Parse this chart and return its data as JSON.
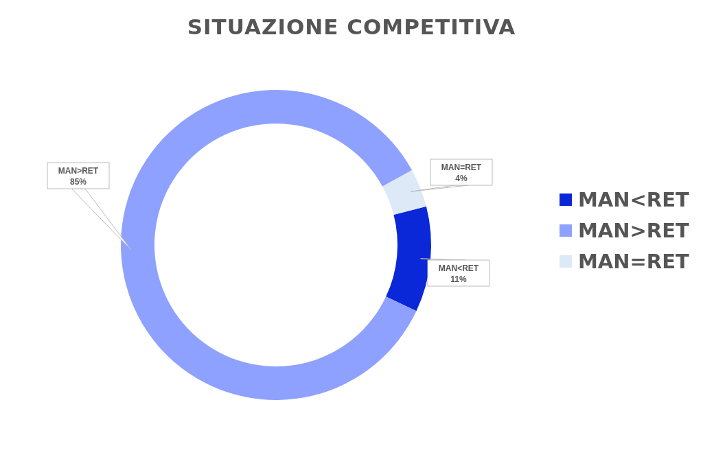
{
  "chart_data": {
    "type": "donut",
    "title": "SITUAZIONE COMPETITIVA",
    "categories": [
      "MAN<RET",
      "MAN>RET",
      "MAN=RET"
    ],
    "values": [
      11,
      85,
      4
    ],
    "value_labels": [
      "11%",
      "85%",
      "4%"
    ],
    "colors": [
      "#0a27d8",
      "#8fa1ff",
      "#dde9f6"
    ],
    "legend": "right"
  }
}
